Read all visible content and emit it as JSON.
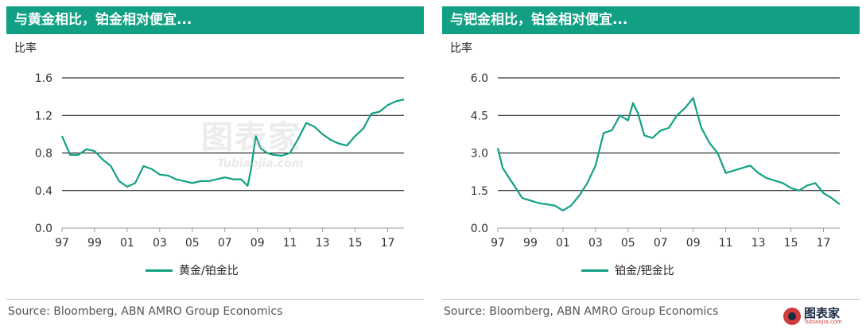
{
  "chart_data": [
    {
      "type": "line",
      "title": "与黄金相比，铂金相对便宜...",
      "ylabel": "比率",
      "xlabel": "",
      "ylim": [
        0.0,
        1.6
      ],
      "yticks": [
        "0.0",
        "0.4",
        "0.8",
        "1.2",
        "1.6"
      ],
      "xlim": [
        1997,
        2018
      ],
      "xticks": [
        "97",
        "99",
        "01",
        "03",
        "05",
        "07",
        "09",
        "11",
        "13",
        "15",
        "17"
      ],
      "grid": true,
      "legend_position": "bottom",
      "series": [
        {
          "name": "黄金/铂金比",
          "color": "#12a085",
          "x": [
            1997.0,
            1997.5,
            1998.0,
            1998.5,
            1999.0,
            1999.5,
            2000.0,
            2000.5,
            2001.0,
            2001.5,
            2002.0,
            2002.5,
            2003.0,
            2003.5,
            2004.0,
            2004.5,
            2005.0,
            2005.5,
            2006.0,
            2006.5,
            2007.0,
            2007.5,
            2008.0,
            2008.4,
            2008.6,
            2008.9,
            2009.2,
            2009.6,
            2010.0,
            2010.5,
            2011.0,
            2011.5,
            2012.0,
            2012.5,
            2013.0,
            2013.5,
            2014.0,
            2014.5,
            2015.0,
            2015.5,
            2016.0,
            2016.5,
            2017.0,
            2017.5,
            2018.0
          ],
          "y": [
            0.98,
            0.78,
            0.78,
            0.84,
            0.82,
            0.73,
            0.66,
            0.5,
            0.44,
            0.48,
            0.66,
            0.63,
            0.57,
            0.56,
            0.52,
            0.5,
            0.48,
            0.5,
            0.5,
            0.52,
            0.54,
            0.52,
            0.52,
            0.45,
            0.62,
            0.98,
            0.85,
            0.8,
            0.78,
            0.77,
            0.8,
            0.95,
            1.12,
            1.08,
            1.0,
            0.94,
            0.9,
            0.88,
            0.98,
            1.06,
            1.22,
            1.24,
            1.31,
            1.35,
            1.37
          ]
        }
      ]
    },
    {
      "type": "line",
      "title": "与钯金相比，铂金相对便宜...",
      "ylabel": "比率",
      "xlabel": "",
      "ylim": [
        0.0,
        6.0
      ],
      "yticks": [
        "0.0",
        "1.5",
        "3.0",
        "4.5",
        "6.0"
      ],
      "xlim": [
        1997,
        2018
      ],
      "xticks": [
        "97",
        "99",
        "01",
        "03",
        "05",
        "07",
        "09",
        "11",
        "13",
        "15",
        "17"
      ],
      "grid": true,
      "legend_position": "bottom",
      "series": [
        {
          "name": "铂金/钯金比",
          "color": "#12a085",
          "x": [
            1997.0,
            1997.3,
            1997.7,
            1998.0,
            1998.5,
            1999.0,
            1999.5,
            2000.0,
            2000.5,
            2001.0,
            2001.5,
            2002.0,
            2002.5,
            2003.0,
            2003.5,
            2004.0,
            2004.5,
            2005.0,
            2005.3,
            2005.6,
            2006.0,
            2006.5,
            2007.0,
            2007.5,
            2008.0,
            2008.5,
            2009.0,
            2009.2,
            2009.5,
            2010.0,
            2010.5,
            2011.0,
            2011.5,
            2012.0,
            2012.5,
            2013.0,
            2013.5,
            2014.0,
            2014.5,
            2015.0,
            2015.5,
            2016.0,
            2016.5,
            2017.0,
            2017.5,
            2018.0
          ],
          "y": [
            3.2,
            2.4,
            2.0,
            1.7,
            1.2,
            1.1,
            1.0,
            0.95,
            0.9,
            0.7,
            0.9,
            1.3,
            1.8,
            2.5,
            3.8,
            3.9,
            4.5,
            4.3,
            5.0,
            4.6,
            3.7,
            3.6,
            3.9,
            4.0,
            4.5,
            4.8,
            5.2,
            4.7,
            4.0,
            3.4,
            3.0,
            2.2,
            2.3,
            2.4,
            2.5,
            2.2,
            2.0,
            1.9,
            1.8,
            1.6,
            1.5,
            1.7,
            1.8,
            1.4,
            1.2,
            0.95
          ]
        }
      ]
    }
  ],
  "panels": [
    {
      "title": "与黄金相比，铂金相对便宜...",
      "ylabel": "比率",
      "legend": "黄金/铂金比",
      "source": "Source: Bloomberg, ABN AMRO Group Economics"
    },
    {
      "title": "与钯金相比，铂金相对便宜...",
      "ylabel": "比率",
      "legend": "铂金/钯金比",
      "source": "Source: Bloomberg, ABN AMRO Group Economics"
    }
  ],
  "watermark": {
    "main": "图表家",
    "sub": "Tubiaojia.com"
  },
  "logo": {
    "name": "图表家",
    "sub": "Tubiaojia.com"
  },
  "colors": {
    "accent": "#12a085",
    "grid": "#000000",
    "axis": "#999999"
  },
  "icons": [
    "tubiaojia-logo-icon"
  ]
}
